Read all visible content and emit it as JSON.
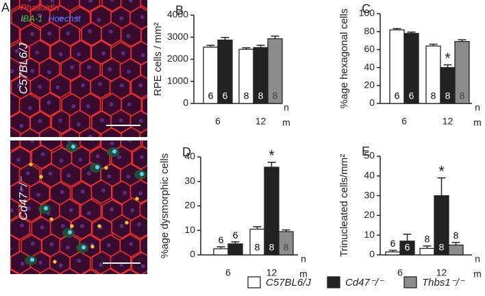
{
  "figure": {
    "panel_a": {
      "label": "A",
      "stains": [
        "Phalloidin",
        "IBA-1",
        "Hoechst"
      ],
      "stain_colors": [
        "#ff3030",
        "#2ecc40",
        "#4a7dff"
      ],
      "top_label": "C57BL6/J",
      "bottom_label": "Cd47⁻/⁻"
    },
    "legend": [
      {
        "name": "C57BL6/J",
        "color": "#ffffff"
      },
      {
        "name": "Cd47⁻/⁻",
        "color": "#222222"
      },
      {
        "name": "Thbs1⁻/⁻",
        "color": "#8c8c8c"
      }
    ]
  },
  "chart_data": [
    {
      "type": "bar",
      "label": "B",
      "y_label": "RPE cells / mm²",
      "x_label": "m",
      "n_label": "n",
      "categories": [
        "6",
        "12"
      ],
      "ylim": [
        0,
        4000
      ],
      "yticks": [
        0,
        1000,
        2000,
        3000,
        4000
      ],
      "series": [
        {
          "values": [
            2550,
            2450
          ],
          "errors": [
            80,
            70
          ],
          "n": [
            6,
            8
          ]
        },
        {
          "values": [
            2870,
            2530
          ],
          "errors": [
            120,
            100
          ],
          "n": [
            6,
            8
          ]
        },
        {
          "values": [
            null,
            2930
          ],
          "errors": [
            null,
            120
          ],
          "n": [
            null,
            8
          ]
        }
      ]
    },
    {
      "type": "bar",
      "label": "C",
      "y_label": "%age hexagonal cells",
      "x_label": "m",
      "n_label": "n",
      "categories": [
        "6",
        "12"
      ],
      "ylim": [
        0,
        100
      ],
      "yticks": [
        0,
        20,
        40,
        60,
        80,
        100
      ],
      "series": [
        {
          "values": [
            82,
            64
          ],
          "errors": [
            1.5,
            2
          ],
          "n": [
            6,
            8
          ]
        },
        {
          "values": [
            78,
            40
          ],
          "errors": [
            1.5,
            3
          ],
          "n": [
            6,
            8
          ],
          "significance": [
            null,
            "*"
          ]
        },
        {
          "values": [
            null,
            69
          ],
          "errors": [
            null,
            2
          ],
          "n": [
            null,
            8
          ]
        }
      ]
    },
    {
      "type": "bar",
      "label": "D",
      "y_label": "%age dysmorphic cells",
      "x_label": "m",
      "n_label": "n",
      "categories": [
        "6",
        "12"
      ],
      "ylim": [
        0,
        40
      ],
      "yticks": [
        0,
        10,
        20,
        30,
        40
      ],
      "series": [
        {
          "values": [
            2.5,
            10.5
          ],
          "errors": [
            0.8,
            1
          ],
          "n": [
            6,
            8
          ]
        },
        {
          "values": [
            4.5,
            35.8
          ],
          "errors": [
            0.8,
            2
          ],
          "n": [
            6,
            8
          ],
          "significance": [
            null,
            "*"
          ]
        },
        {
          "values": [
            null,
            9.5
          ],
          "errors": [
            null,
            0.7
          ],
          "n": [
            null,
            8
          ]
        }
      ]
    },
    {
      "type": "bar",
      "label": "E",
      "y_label": "Trinucleated cells/mm²",
      "x_label": "m",
      "n_label": "n",
      "categories": [
        "6",
        "12"
      ],
      "ylim": [
        0,
        50
      ],
      "yticks": [
        0,
        10,
        20,
        30,
        40,
        50
      ],
      "series": [
        {
          "values": [
            1.5,
            3.3
          ],
          "errors": [
            0.8,
            1.2
          ],
          "n": [
            6,
            8
          ]
        },
        {
          "values": [
            7,
            30
          ],
          "errors": [
            3.5,
            9
          ],
          "n": [
            6,
            8
          ],
          "significance": [
            null,
            "*"
          ]
        },
        {
          "values": [
            null,
            5
          ],
          "errors": [
            null,
            1.3
          ],
          "n": [
            null,
            8
          ]
        }
      ]
    }
  ]
}
